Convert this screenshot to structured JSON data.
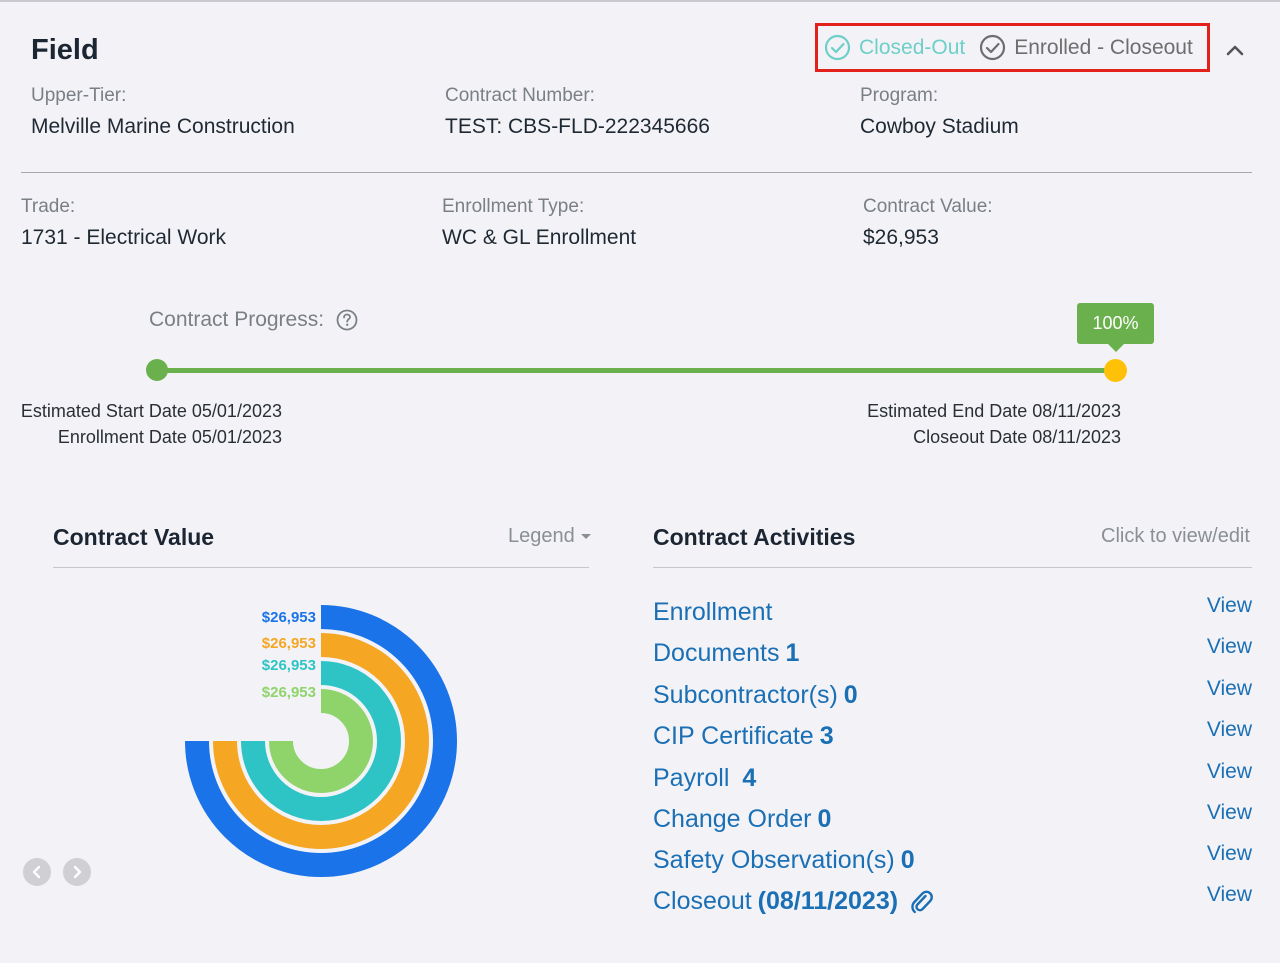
{
  "header": {
    "title": "Field",
    "status_closed": "Closed-Out",
    "status_enrolled": "Enrolled - Closeout"
  },
  "details": {
    "upper_tier_label": "Upper-Tier:",
    "upper_tier_value": "Melville Marine Construction",
    "contract_number_label": "Contract Number:",
    "contract_number_value": "TEST: CBS-FLD-222345666",
    "program_label": "Program:",
    "program_value": "Cowboy Stadium",
    "trade_label": "Trade:",
    "trade_value": "1731 - Electrical Work",
    "enrollment_type_label": "Enrollment Type:",
    "enrollment_type_value": "WC & GL Enrollment",
    "contract_value_label": "Contract Value:",
    "contract_value_value": "$26,953"
  },
  "progress": {
    "label": "Contract Progress:",
    "percent_text": "100%",
    "percent": 100,
    "est_start": "Estimated Start Date 05/01/2023",
    "enrollment_date": "Enrollment Date 05/01/2023",
    "est_end": "Estimated End Date 08/11/2023",
    "closeout_date": "Closeout Date 08/11/2023",
    "colors": {
      "track": "#6ab04c",
      "end_marker": "#ffc107"
    }
  },
  "contract_value_panel": {
    "title": "Contract Value",
    "legend_label": "Legend",
    "rings": [
      {
        "label": "$26,953",
        "value": 26953,
        "fraction": 0.75,
        "color": "#1a73e8"
      },
      {
        "label": "$26,953",
        "value": 26953,
        "fraction": 0.75,
        "color": "#f5a623"
      },
      {
        "label": "$26,953",
        "value": 26953,
        "fraction": 0.75,
        "color": "#2ec4c6"
      },
      {
        "label": "$26,953",
        "value": 26953,
        "fraction": 0.75,
        "color": "#8ed46a"
      }
    ]
  },
  "activities_panel": {
    "title": "Contract Activities",
    "hint": "Click to view/edit",
    "view_label": "View",
    "items": [
      {
        "name": "Enrollment",
        "count": ""
      },
      {
        "name": "Documents",
        "count": "1"
      },
      {
        "name": "Subcontractor(s)",
        "count": "0"
      },
      {
        "name": "CIP Certificate",
        "count": "3"
      },
      {
        "name": "Payroll ",
        "count": "4"
      },
      {
        "name": "Change Order",
        "count": "0"
      },
      {
        "name": "Safety Observation(s)",
        "count": "0"
      },
      {
        "name": "Closeout",
        "count": "(08/11/2023)",
        "attachment": "paperclip-icon"
      }
    ]
  }
}
